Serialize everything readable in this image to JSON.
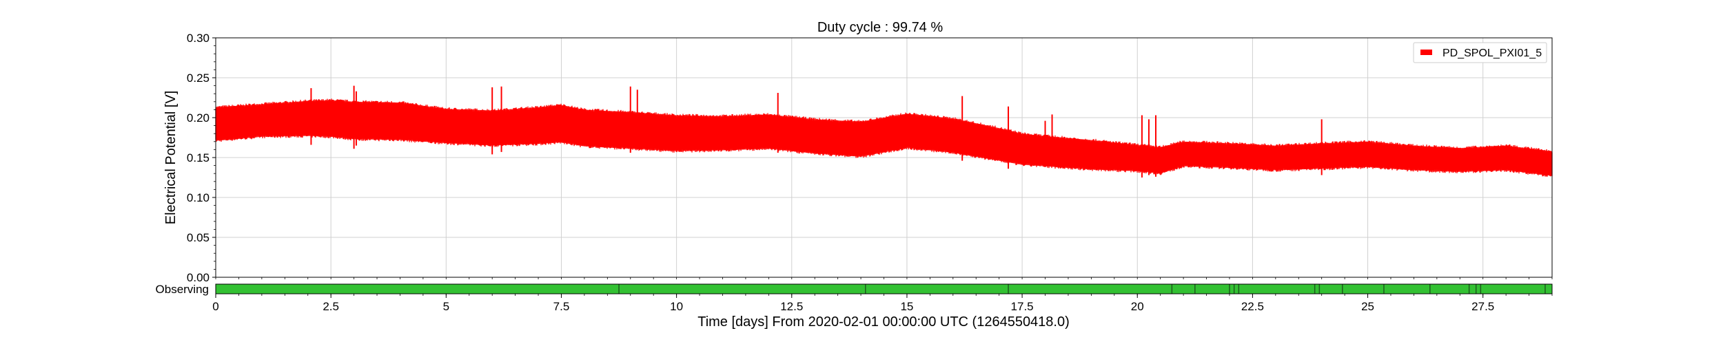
{
  "chart_data": {
    "type": "area",
    "title": "Duty cycle : 99.74 %",
    "xlabel": "Time [days] From 2020-02-01 00:00:00 UTC (1264550418.0)",
    "ylabel": "Electrical Potential [V]",
    "xlim": [
      0,
      29
    ],
    "ylim": [
      0,
      0.3
    ],
    "x_ticks": [
      0,
      2.5,
      5,
      7.5,
      10,
      12.5,
      15,
      17.5,
      20,
      22.5,
      25,
      27.5
    ],
    "x_tick_labels": [
      "0",
      "2.5",
      "5",
      "7.5",
      "10",
      "12.5",
      "15",
      "17.5",
      "20",
      "22.5",
      "25",
      "27.5"
    ],
    "y_ticks": [
      0,
      0.05,
      0.1,
      0.15,
      0.2,
      0.25,
      0.3
    ],
    "y_tick_labels": [
      "0.00",
      "0.05",
      "0.10",
      "0.15",
      "0.20",
      "0.25",
      "0.30"
    ],
    "grid": true,
    "legend": "top-right",
    "series": [
      {
        "name": "PD_SPOL_PXI01_5",
        "color": "#ff0000",
        "x": [
          0,
          1,
          2,
          2.5,
          3,
          4,
          5,
          6,
          7,
          7.5,
          8,
          9,
          10,
          11,
          12,
          13,
          14,
          15,
          16,
          17,
          17.5,
          18,
          19,
          20,
          20.5,
          21,
          22,
          23,
          24,
          25,
          26,
          27,
          28,
          29
        ],
        "upper": [
          0.213,
          0.217,
          0.221,
          0.222,
          0.22,
          0.219,
          0.211,
          0.209,
          0.213,
          0.216,
          0.21,
          0.207,
          0.203,
          0.202,
          0.204,
          0.198,
          0.195,
          0.205,
          0.199,
          0.187,
          0.18,
          0.177,
          0.172,
          0.166,
          0.163,
          0.17,
          0.168,
          0.165,
          0.168,
          0.17,
          0.165,
          0.162,
          0.165,
          0.158
        ],
        "lower": [
          0.171,
          0.176,
          0.177,
          0.176,
          0.173,
          0.172,
          0.168,
          0.165,
          0.167,
          0.169,
          0.164,
          0.161,
          0.158,
          0.159,
          0.161,
          0.155,
          0.151,
          0.162,
          0.156,
          0.146,
          0.141,
          0.139,
          0.135,
          0.133,
          0.13,
          0.139,
          0.137,
          0.134,
          0.136,
          0.138,
          0.134,
          0.132,
          0.134,
          0.127
        ],
        "spikes": [
          {
            "x": 2.07,
            "low": 0.166,
            "high": 0.237
          },
          {
            "x": 3.0,
            "low": 0.161,
            "high": 0.24
          },
          {
            "x": 3.05,
            "low": 0.165,
            "high": 0.233
          },
          {
            "x": 6.0,
            "low": 0.154,
            "high": 0.238
          },
          {
            "x": 6.2,
            "low": 0.157,
            "high": 0.239
          },
          {
            "x": 9.0,
            "low": 0.156,
            "high": 0.239
          },
          {
            "x": 9.15,
            "low": 0.16,
            "high": 0.235
          },
          {
            "x": 12.2,
            "low": 0.156,
            "high": 0.231
          },
          {
            "x": 16.2,
            "low": 0.146,
            "high": 0.227
          },
          {
            "x": 17.2,
            "low": 0.136,
            "high": 0.214
          },
          {
            "x": 18.0,
            "low": 0.138,
            "high": 0.196
          },
          {
            "x": 18.15,
            "low": 0.14,
            "high": 0.204
          },
          {
            "x": 20.1,
            "low": 0.125,
            "high": 0.203
          },
          {
            "x": 20.25,
            "low": 0.128,
            "high": 0.198
          },
          {
            "x": 20.4,
            "low": 0.126,
            "high": 0.203
          },
          {
            "x": 24.0,
            "low": 0.128,
            "high": 0.198
          }
        ]
      }
    ]
  },
  "observing": {
    "label": "Observing",
    "color": "#33c133",
    "gap_color": "#1c5c1c",
    "gaps": [
      8.75,
      14.1,
      17.2,
      20.75,
      21.25,
      22.0,
      22.1,
      22.2,
      23.85,
      23.95,
      24.45,
      25.35,
      26.35,
      27.2,
      27.35,
      27.45,
      28.85
    ]
  }
}
